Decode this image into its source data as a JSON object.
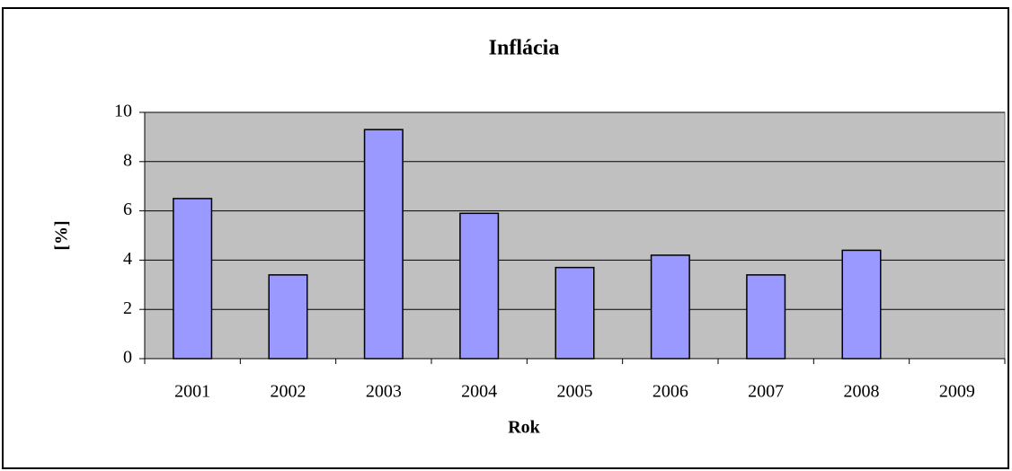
{
  "chart_data": {
    "type": "bar",
    "title": "Inflácia",
    "x_label": "Rok",
    "y_label": "[%]",
    "categories": [
      "2001",
      "2002",
      "2003",
      "2004",
      "2005",
      "2006",
      "2007",
      "2008",
      "2009"
    ],
    "values": [
      6.5,
      3.4,
      9.3,
      5.9,
      3.7,
      4.2,
      3.4,
      4.4,
      null
    ],
    "color": "#9999ff",
    "plot_background": "#c0c0c0",
    "ylim": [
      0,
      10
    ],
    "yticks": [
      0,
      2,
      4,
      6,
      8,
      10
    ],
    "grid": true
  }
}
